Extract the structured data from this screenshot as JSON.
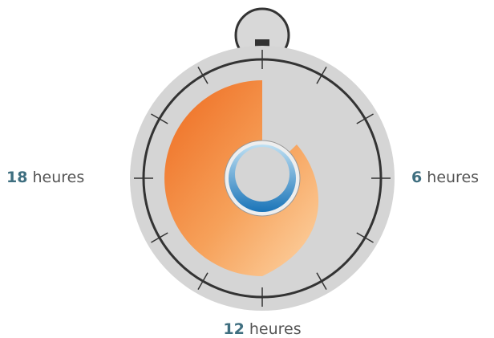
{
  "labels": [
    {
      "number": "18",
      "unit": "heures"
    },
    {
      "number": "6",
      "unit": "heures"
    },
    {
      "number": "12",
      "unit": "heures"
    }
  ]
}
